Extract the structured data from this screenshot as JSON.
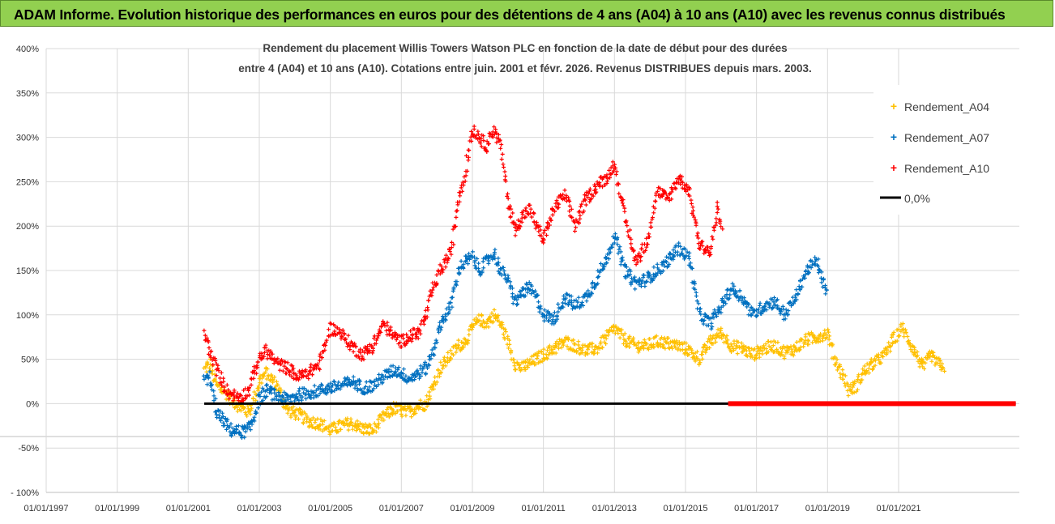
{
  "header": {
    "title": "ADAM Informe. Evolution historique des performances en euros pour des détentions de 4 ans (A04) à 10 ans (A10) avec les revenus connus distribués"
  },
  "chart_data": {
    "type": "scatter",
    "title_lines": [
      "Rendement du placement Willis Towers Watson PLC en fonction de la date de début pour des durées",
      "entre 4 (A04) et 10 ans (A10).  Cotations entre juin. 2001 et févr.  2026. Revenus DISTRIBUES depuis mars. 2003."
    ],
    "xlabel": "",
    "ylabel": "",
    "x_range": [
      1997.0,
      2024.4
    ],
    "x_tick_labels": [
      "01/01/1997",
      "01/01/1999",
      "01/01/2001",
      "01/01/2003",
      "01/01/2005",
      "01/01/2007",
      "01/01/2009",
      "01/01/2011",
      "01/01/2013",
      "01/01/2015",
      "01/01/2017",
      "01/01/2019",
      "01/01/2021"
    ],
    "x_tick_years": [
      1997,
      1999,
      2001,
      2003,
      2005,
      2007,
      2009,
      2011,
      2013,
      2015,
      2017,
      2019,
      2021
    ],
    "ylim": [
      -100,
      400
    ],
    "y_ticks": [
      -100,
      -50,
      0,
      50,
      100,
      150,
      200,
      250,
      300,
      350,
      400
    ],
    "y_tick_labels": [
      "- 100%",
      "-50%",
      "0%",
      "50%",
      "100%",
      "150%",
      "200%",
      "250%",
      "300%",
      "350%",
      "400%"
    ],
    "legend": {
      "position": "top-right",
      "entries": [
        {
          "label": "Rendement_A04",
          "color": "#ffc000",
          "marker": "+"
        },
        {
          "label": "Rendement_A07",
          "color": "#0070c0",
          "marker": "+"
        },
        {
          "label": "Rendement_A10",
          "color": "#ff0000",
          "marker": "+"
        },
        {
          "label": "0,0%",
          "color": "#000000",
          "marker": "line"
        }
      ]
    },
    "zero_line": {
      "label": "0,0%",
      "y": 0,
      "x_start": 2001.45,
      "x_end": 2024.3,
      "color": "#000000"
    },
    "series": [
      {
        "name": "Rendement_A04",
        "color": "#ffc000",
        "points": [
          [
            2001.45,
            38
          ],
          [
            2001.6,
            45
          ],
          [
            2001.8,
            20
          ],
          [
            2002.0,
            15
          ],
          [
            2002.2,
            5
          ],
          [
            2002.5,
            -5
          ],
          [
            2002.7,
            -10
          ],
          [
            2002.85,
            5
          ],
          [
            2003.0,
            25
          ],
          [
            2003.2,
            35
          ],
          [
            2003.5,
            20
          ],
          [
            2003.8,
            -8
          ],
          [
            2004.1,
            -12
          ],
          [
            2004.4,
            -20
          ],
          [
            2004.7,
            -22
          ],
          [
            2005.0,
            -30
          ],
          [
            2005.3,
            -25
          ],
          [
            2005.6,
            -22
          ],
          [
            2005.9,
            -28
          ],
          [
            2006.2,
            -30
          ],
          [
            2006.5,
            -15
          ],
          [
            2006.8,
            -5
          ],
          [
            2007.0,
            -8
          ],
          [
            2007.2,
            -10
          ],
          [
            2007.5,
            -2
          ],
          [
            2007.7,
            0
          ],
          [
            2007.9,
            20
          ],
          [
            2008.1,
            40
          ],
          [
            2008.4,
            55
          ],
          [
            2008.6,
            65
          ],
          [
            2008.8,
            70
          ],
          [
            2009.0,
            85
          ],
          [
            2009.2,
            95
          ],
          [
            2009.4,
            90
          ],
          [
            2009.6,
            100
          ],
          [
            2009.8,
            90
          ],
          [
            2010.0,
            70
          ],
          [
            2010.2,
            45
          ],
          [
            2010.4,
            40
          ],
          [
            2010.6,
            45
          ],
          [
            2010.8,
            50
          ],
          [
            2011.0,
            55
          ],
          [
            2011.3,
            62
          ],
          [
            2011.6,
            70
          ],
          [
            2011.9,
            65
          ],
          [
            2012.2,
            60
          ],
          [
            2012.5,
            62
          ],
          [
            2012.8,
            75
          ],
          [
            2013.0,
            85
          ],
          [
            2013.3,
            72
          ],
          [
            2013.6,
            65
          ],
          [
            2013.9,
            65
          ],
          [
            2014.2,
            70
          ],
          [
            2014.5,
            68
          ],
          [
            2014.8,
            65
          ],
          [
            2015.1,
            60
          ],
          [
            2015.4,
            50
          ],
          [
            2015.7,
            70
          ],
          [
            2016.0,
            80
          ],
          [
            2016.3,
            65
          ],
          [
            2016.6,
            62
          ],
          [
            2016.9,
            55
          ],
          [
            2017.2,
            62
          ],
          [
            2017.5,
            65
          ],
          [
            2017.8,
            58
          ],
          [
            2018.1,
            62
          ],
          [
            2018.4,
            72
          ],
          [
            2018.7,
            75
          ],
          [
            2019.0,
            80
          ],
          [
            2019.2,
            50
          ],
          [
            2019.4,
            35
          ],
          [
            2019.6,
            15
          ],
          [
            2019.8,
            20
          ],
          [
            2020.0,
            35
          ],
          [
            2020.3,
            45
          ],
          [
            2020.6,
            55
          ],
          [
            2020.9,
            75
          ],
          [
            2021.1,
            85
          ],
          [
            2021.3,
            70
          ],
          [
            2021.5,
            55
          ],
          [
            2021.7,
            40
          ],
          [
            2021.9,
            55
          ],
          [
            2022.1,
            45
          ],
          [
            2022.3,
            42
          ]
        ]
      },
      {
        "name": "Rendement_A07",
        "color": "#0070c0",
        "points": [
          [
            2001.45,
            25
          ],
          [
            2001.6,
            30
          ],
          [
            2001.8,
            -10
          ],
          [
            2002.0,
            -20
          ],
          [
            2002.2,
            -30
          ],
          [
            2002.5,
            -32
          ],
          [
            2002.7,
            -30
          ],
          [
            2002.85,
            -15
          ],
          [
            2003.0,
            5
          ],
          [
            2003.2,
            15
          ],
          [
            2003.5,
            8
          ],
          [
            2003.8,
            5
          ],
          [
            2004.1,
            10
          ],
          [
            2004.4,
            12
          ],
          [
            2004.7,
            15
          ],
          [
            2005.0,
            18
          ],
          [
            2005.3,
            20
          ],
          [
            2005.6,
            25
          ],
          [
            2005.9,
            18
          ],
          [
            2006.2,
            20
          ],
          [
            2006.5,
            30
          ],
          [
            2006.8,
            38
          ],
          [
            2007.0,
            35
          ],
          [
            2007.2,
            28
          ],
          [
            2007.5,
            35
          ],
          [
            2007.7,
            40
          ],
          [
            2007.9,
            60
          ],
          [
            2008.1,
            90
          ],
          [
            2008.4,
            110
          ],
          [
            2008.6,
            150
          ],
          [
            2008.8,
            160
          ],
          [
            2009.0,
            165
          ],
          [
            2009.2,
            150
          ],
          [
            2009.4,
            160
          ],
          [
            2009.6,
            170
          ],
          [
            2009.8,
            150
          ],
          [
            2010.0,
            140
          ],
          [
            2010.2,
            115
          ],
          [
            2010.4,
            125
          ],
          [
            2010.6,
            130
          ],
          [
            2010.8,
            120
          ],
          [
            2011.0,
            100
          ],
          [
            2011.3,
            95
          ],
          [
            2011.6,
            120
          ],
          [
            2011.9,
            110
          ],
          [
            2012.2,
            120
          ],
          [
            2012.5,
            140
          ],
          [
            2012.8,
            165
          ],
          [
            2013.0,
            190
          ],
          [
            2013.3,
            150
          ],
          [
            2013.6,
            135
          ],
          [
            2013.9,
            140
          ],
          [
            2014.2,
            150
          ],
          [
            2014.5,
            160
          ],
          [
            2014.8,
            175
          ],
          [
            2015.1,
            165
          ],
          [
            2015.4,
            100
          ],
          [
            2015.7,
            90
          ],
          [
            2016.0,
            110
          ],
          [
            2016.3,
            130
          ],
          [
            2016.6,
            120
          ],
          [
            2016.9,
            100
          ],
          [
            2017.2,
            110
          ],
          [
            2017.5,
            115
          ],
          [
            2017.8,
            100
          ],
          [
            2018.1,
            120
          ],
          [
            2018.4,
            150
          ],
          [
            2018.7,
            160
          ],
          [
            2019.0,
            120
          ]
        ]
      },
      {
        "name": "Rendement_A10",
        "color": "#ff0000",
        "points": [
          [
            2001.45,
            80
          ],
          [
            2001.6,
            60
          ],
          [
            2001.8,
            40
          ],
          [
            2002.0,
            20
          ],
          [
            2002.2,
            10
          ],
          [
            2002.5,
            8
          ],
          [
            2002.7,
            15
          ],
          [
            2002.85,
            35
          ],
          [
            2003.0,
            50
          ],
          [
            2003.2,
            60
          ],
          [
            2003.5,
            45
          ],
          [
            2003.8,
            40
          ],
          [
            2004.1,
            30
          ],
          [
            2004.4,
            35
          ],
          [
            2004.7,
            45
          ],
          [
            2005.0,
            85
          ],
          [
            2005.3,
            80
          ],
          [
            2005.6,
            65
          ],
          [
            2005.9,
            55
          ],
          [
            2006.2,
            65
          ],
          [
            2006.5,
            90
          ],
          [
            2006.8,
            75
          ],
          [
            2007.0,
            70
          ],
          [
            2007.2,
            75
          ],
          [
            2007.5,
            80
          ],
          [
            2007.7,
            100
          ],
          [
            2007.9,
            130
          ],
          [
            2008.1,
            150
          ],
          [
            2008.4,
            170
          ],
          [
            2008.6,
            230
          ],
          [
            2008.8,
            260
          ],
          [
            2009.0,
            310
          ],
          [
            2009.2,
            300
          ],
          [
            2009.4,
            290
          ],
          [
            2009.6,
            310
          ],
          [
            2009.8,
            290
          ],
          [
            2010.0,
            230
          ],
          [
            2010.2,
            195
          ],
          [
            2010.4,
            210
          ],
          [
            2010.6,
            220
          ],
          [
            2010.8,
            200
          ],
          [
            2011.0,
            185
          ],
          [
            2011.3,
            220
          ],
          [
            2011.6,
            235
          ],
          [
            2011.9,
            200
          ],
          [
            2012.2,
            230
          ],
          [
            2012.5,
            245
          ],
          [
            2012.8,
            255
          ],
          [
            2013.0,
            270
          ],
          [
            2013.3,
            210
          ],
          [
            2013.6,
            160
          ],
          [
            2013.9,
            180
          ],
          [
            2014.2,
            240
          ],
          [
            2014.5,
            230
          ],
          [
            2014.8,
            255
          ],
          [
            2015.1,
            240
          ],
          [
            2015.4,
            180
          ],
          [
            2015.7,
            170
          ],
          [
            2015.9,
            220
          ],
          [
            2016.05,
            190
          ]
        ]
      },
      {
        "name": "zero_markers",
        "color": "#ff0000",
        "points": [
          [
            2016.2,
            0
          ],
          [
            2024.3,
            0
          ]
        ]
      }
    ]
  }
}
